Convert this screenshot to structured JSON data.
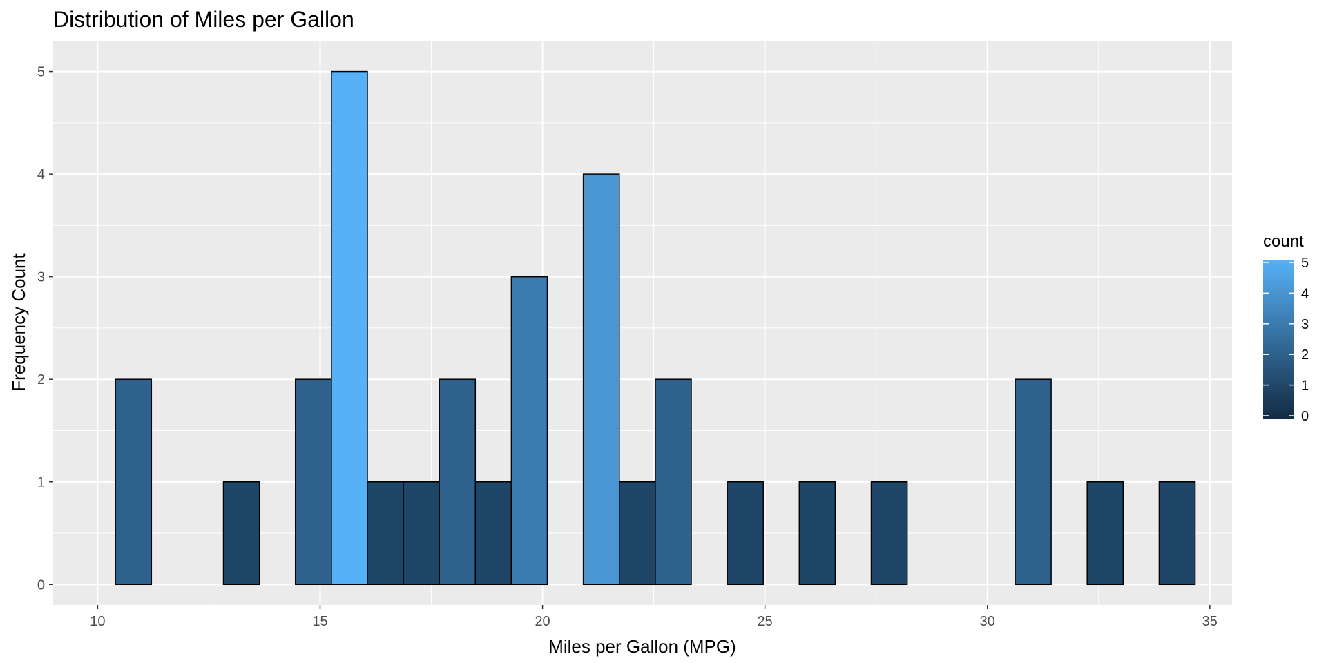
{
  "chart_data": {
    "type": "bar",
    "title": "Distribution of Miles per Gallon",
    "xlabel": "Miles per Gallon (MPG)",
    "ylabel": "Frequency Count",
    "xlim": [
      9,
      35.5
    ],
    "ylim": [
      -0.2,
      5.3
    ],
    "x_ticks": [
      10,
      15,
      20,
      25,
      30,
      35
    ],
    "y_ticks": [
      0,
      1,
      2,
      3,
      4,
      5
    ],
    "grid": true,
    "bins": {
      "start": 10.4,
      "width": 0.809,
      "counts": [
        2,
        0,
        0,
        1,
        0,
        2,
        5,
        1,
        1,
        2,
        1,
        3,
        0,
        4,
        1,
        2,
        0,
        1,
        0,
        1,
        0,
        1,
        0,
        0,
        0,
        2,
        0,
        1,
        0,
        1
      ]
    },
    "legend": {
      "title": "count",
      "position": "right",
      "range": [
        0,
        5
      ],
      "labels": [
        "5",
        "4",
        "3",
        "2",
        "1",
        "0"
      ],
      "colors": {
        "low": "#132B43",
        "high": "#56B1F7"
      }
    },
    "colors": {
      "panel": "#EBEBEB",
      "grid": "#FFFFFF",
      "bar_outline": "#000000"
    }
  }
}
